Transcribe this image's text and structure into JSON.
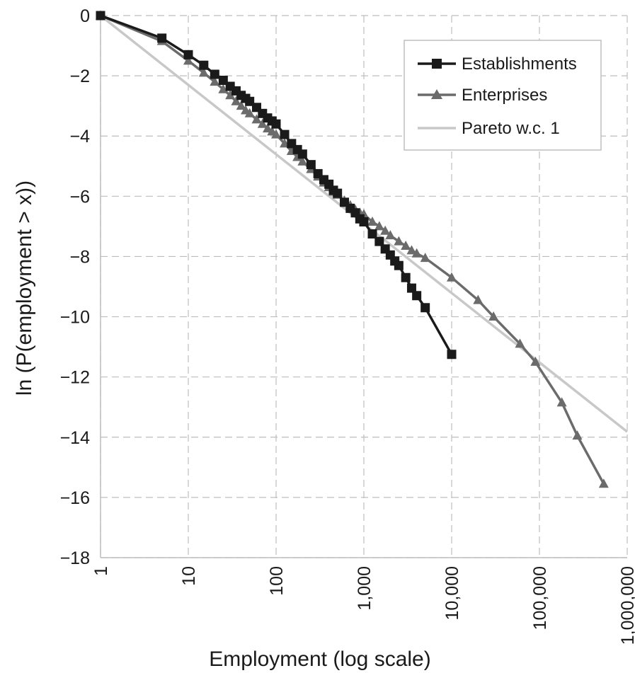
{
  "chart_data": {
    "type": "line",
    "x_scale": "log",
    "xlabel": "Employment (log scale)",
    "ylabel": "ln (P(employment > x))",
    "xlim": [
      1,
      1000000
    ],
    "ylim": [
      -18,
      0
    ],
    "grid": true,
    "legend_position": "top-right",
    "x_ticks": [
      1,
      10,
      100,
      1000,
      10000,
      100000,
      1000000
    ],
    "x_tick_labels": [
      "1",
      "10",
      "100",
      "1,000",
      "10,000",
      "100,000",
      "1,000,000"
    ],
    "y_ticks": [
      0,
      -2,
      -4,
      -6,
      -8,
      -10,
      -12,
      -14,
      -16,
      -18
    ],
    "y_tick_labels": [
      "0",
      "−2",
      "−4",
      "−6",
      "−8",
      "−10",
      "−12",
      "−14",
      "−16",
      "−18"
    ],
    "series": [
      {
        "name": "Establishments",
        "color": "#1a1a1a",
        "marker": "square",
        "x": [
          1,
          5,
          10,
          15,
          20,
          25,
          30,
          35,
          40,
          45,
          50,
          60,
          70,
          80,
          90,
          100,
          125,
          150,
          175,
          200,
          250,
          300,
          350,
          400,
          450,
          500,
          600,
          700,
          800,
          900,
          1000,
          1250,
          1500,
          1750,
          2000,
          2250,
          2500,
          3000,
          3500,
          4000,
          5000,
          10000
        ],
        "y": [
          0,
          -0.75,
          -1.3,
          -1.65,
          -1.95,
          -2.15,
          -2.35,
          -2.5,
          -2.65,
          -2.75,
          -2.85,
          -3.05,
          -3.25,
          -3.4,
          -3.5,
          -3.6,
          -3.95,
          -4.25,
          -4.45,
          -4.6,
          -4.95,
          -5.25,
          -5.45,
          -5.6,
          -5.8,
          -5.9,
          -6.2,
          -6.4,
          -6.55,
          -6.75,
          -6.85,
          -7.25,
          -7.5,
          -7.75,
          -7.95,
          -8.15,
          -8.3,
          -8.7,
          -9.05,
          -9.3,
          -9.7,
          -11.25
        ]
      },
      {
        "name": "Enterprises",
        "color": "#6b6b6b",
        "marker": "triangle",
        "x": [
          1,
          5,
          10,
          15,
          20,
          25,
          30,
          35,
          40,
          45,
          50,
          60,
          70,
          80,
          90,
          100,
          125,
          150,
          175,
          200,
          250,
          300,
          350,
          400,
          450,
          500,
          600,
          700,
          800,
          900,
          1000,
          1250,
          1500,
          1750,
          2000,
          2500,
          3000,
          3500,
          4000,
          5000,
          10000,
          20000,
          30000,
          60000,
          90000,
          180000,
          270000,
          540000
        ],
        "y": [
          0,
          -0.85,
          -1.5,
          -1.9,
          -2.2,
          -2.45,
          -2.65,
          -2.85,
          -3.0,
          -3.15,
          -3.25,
          -3.45,
          -3.6,
          -3.75,
          -3.85,
          -3.95,
          -4.25,
          -4.5,
          -4.7,
          -4.85,
          -5.1,
          -5.35,
          -5.55,
          -5.7,
          -5.85,
          -5.95,
          -6.15,
          -6.3,
          -6.45,
          -6.55,
          -6.6,
          -6.85,
          -7.0,
          -7.15,
          -7.3,
          -7.5,
          -7.65,
          -7.8,
          -7.9,
          -8.05,
          -8.7,
          -9.45,
          -10.0,
          -10.9,
          -11.5,
          -12.85,
          -13.95,
          -15.55
        ]
      },
      {
        "name": "Pareto w.c. 1",
        "color": "#c8c8c8",
        "marker": "none",
        "x": [
          1,
          1000000
        ],
        "y": [
          0,
          -13.82
        ]
      }
    ]
  }
}
